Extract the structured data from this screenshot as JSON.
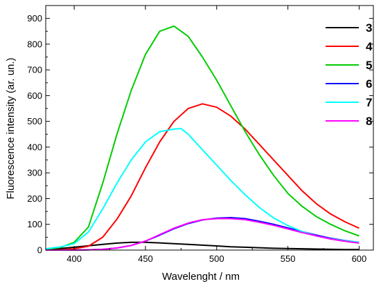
{
  "chart_data": {
    "type": "line",
    "title": "",
    "xlabel": "Wavelenght / nm",
    "ylabel": "Fluorescence intensity (ar. un.)",
    "xlim": [
      380,
      610
    ],
    "ylim": [
      0,
      950
    ],
    "xticks": [
      400,
      450,
      500,
      550,
      600
    ],
    "yticks": [
      0,
      100,
      200,
      300,
      400,
      500,
      600,
      700,
      800,
      900
    ],
    "grid": false,
    "legend_position": "top-right",
    "series": [
      {
        "name": "3",
        "color": "#000000",
        "x": [
          380,
          390,
          400,
          410,
          420,
          430,
          440,
          450,
          460,
          470,
          480,
          490,
          500,
          510,
          520,
          530,
          540,
          550,
          560,
          570,
          580,
          590,
          600
        ],
        "y": [
          2,
          6,
          11,
          17,
          22,
          27,
          30,
          30,
          28,
          25,
          22,
          19,
          16,
          13,
          11,
          9,
          7,
          6,
          5,
          4,
          3,
          2,
          2
        ]
      },
      {
        "name": "4",
        "color": "#ff0000",
        "x": [
          380,
          390,
          400,
          410,
          420,
          430,
          440,
          450,
          460,
          470,
          480,
          490,
          500,
          510,
          520,
          530,
          540,
          550,
          560,
          570,
          580,
          590,
          600
        ],
        "y": [
          0,
          1,
          5,
          15,
          50,
          120,
          210,
          320,
          420,
          500,
          550,
          568,
          555,
          520,
          470,
          410,
          350,
          290,
          230,
          180,
          140,
          110,
          85
        ]
      },
      {
        "name": "5",
        "color": "#00cc00",
        "x": [
          380,
          390,
          400,
          410,
          420,
          430,
          440,
          450,
          460,
          470,
          480,
          490,
          500,
          510,
          520,
          530,
          540,
          550,
          560,
          570,
          580,
          590,
          600
        ],
        "y": [
          3,
          10,
          30,
          90,
          260,
          450,
          620,
          760,
          850,
          870,
          830,
          750,
          660,
          560,
          460,
          370,
          290,
          220,
          170,
          130,
          100,
          75,
          55
        ]
      },
      {
        "name": "6",
        "color": "#0000ff",
        "x": [
          380,
          390,
          400,
          410,
          420,
          430,
          440,
          450,
          460,
          470,
          480,
          490,
          500,
          510,
          520,
          530,
          540,
          550,
          560,
          570,
          580,
          590,
          600
        ],
        "y": [
          0,
          0,
          0,
          1,
          3,
          8,
          18,
          35,
          58,
          83,
          103,
          117,
          124,
          126,
          122,
          112,
          100,
          86,
          72,
          58,
          46,
          37,
          30
        ]
      },
      {
        "name": "7",
        "color": "#00ffff",
        "x": [
          380,
          390,
          400,
          410,
          420,
          430,
          440,
          450,
          460,
          470,
          475,
          480,
          490,
          500,
          510,
          520,
          530,
          540,
          550,
          560,
          570,
          580,
          590,
          600
        ],
        "y": [
          5,
          12,
          25,
          70,
          160,
          260,
          350,
          420,
          460,
          470,
          472,
          450,
          390,
          330,
          270,
          215,
          165,
          125,
          95,
          72,
          55,
          44,
          36,
          30
        ]
      },
      {
        "name": "8",
        "color": "#ff00ff",
        "x": [
          380,
          390,
          400,
          410,
          420,
          430,
          440,
          450,
          460,
          470,
          480,
          490,
          500,
          510,
          520,
          530,
          540,
          550,
          560,
          570,
          580,
          590,
          600
        ],
        "y": [
          0,
          0,
          0,
          1,
          3,
          8,
          18,
          35,
          60,
          85,
          105,
          118,
          122,
          122,
          118,
          108,
          96,
          82,
          68,
          55,
          43,
          34,
          27
        ]
      }
    ]
  }
}
